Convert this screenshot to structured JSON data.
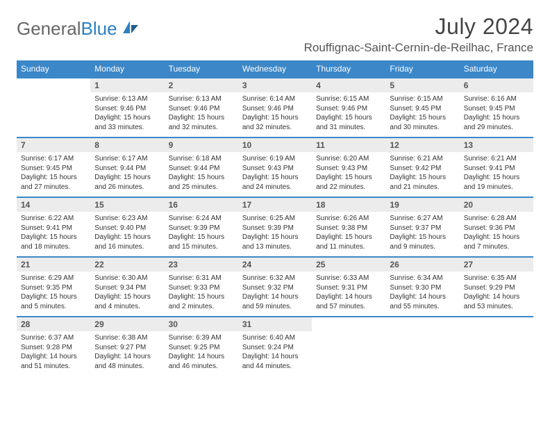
{
  "brand": {
    "part1": "General",
    "part2": "Blue"
  },
  "title": "July 2024",
  "location": "Rouffignac-Saint-Cernin-de-Reilhac, France",
  "colors": {
    "header_bg": "#3b87c8",
    "header_text": "#ffffff",
    "daynum_bg": "#ececec",
    "row_border": "#3b87c8",
    "body_text": "#333333",
    "brand_gray": "#666666",
    "brand_blue": "#2f7fbf"
  },
  "typography": {
    "title_fontsize": 32,
    "location_fontsize": 17,
    "dayheader_fontsize": 12,
    "daynum_fontsize": 12,
    "cell_fontsize": 10
  },
  "layout": {
    "start_weekday": 0,
    "first_day_column": 1,
    "days_in_month": 31,
    "rows": 5,
    "cols": 7
  },
  "day_headers": [
    "Sunday",
    "Monday",
    "Tuesday",
    "Wednesday",
    "Thursday",
    "Friday",
    "Saturday"
  ],
  "days": [
    {
      "n": 1,
      "sunrise": "6:13 AM",
      "sunset": "9:46 PM",
      "daylight": "15 hours and 33 minutes."
    },
    {
      "n": 2,
      "sunrise": "6:13 AM",
      "sunset": "9:46 PM",
      "daylight": "15 hours and 32 minutes."
    },
    {
      "n": 3,
      "sunrise": "6:14 AM",
      "sunset": "9:46 PM",
      "daylight": "15 hours and 32 minutes."
    },
    {
      "n": 4,
      "sunrise": "6:15 AM",
      "sunset": "9:46 PM",
      "daylight": "15 hours and 31 minutes."
    },
    {
      "n": 5,
      "sunrise": "6:15 AM",
      "sunset": "9:45 PM",
      "daylight": "15 hours and 30 minutes."
    },
    {
      "n": 6,
      "sunrise": "6:16 AM",
      "sunset": "9:45 PM",
      "daylight": "15 hours and 29 minutes."
    },
    {
      "n": 7,
      "sunrise": "6:17 AM",
      "sunset": "9:45 PM",
      "daylight": "15 hours and 27 minutes."
    },
    {
      "n": 8,
      "sunrise": "6:17 AM",
      "sunset": "9:44 PM",
      "daylight": "15 hours and 26 minutes."
    },
    {
      "n": 9,
      "sunrise": "6:18 AM",
      "sunset": "9:44 PM",
      "daylight": "15 hours and 25 minutes."
    },
    {
      "n": 10,
      "sunrise": "6:19 AM",
      "sunset": "9:43 PM",
      "daylight": "15 hours and 24 minutes."
    },
    {
      "n": 11,
      "sunrise": "6:20 AM",
      "sunset": "9:43 PM",
      "daylight": "15 hours and 22 minutes."
    },
    {
      "n": 12,
      "sunrise": "6:21 AM",
      "sunset": "9:42 PM",
      "daylight": "15 hours and 21 minutes."
    },
    {
      "n": 13,
      "sunrise": "6:21 AM",
      "sunset": "9:41 PM",
      "daylight": "15 hours and 19 minutes."
    },
    {
      "n": 14,
      "sunrise": "6:22 AM",
      "sunset": "9:41 PM",
      "daylight": "15 hours and 18 minutes."
    },
    {
      "n": 15,
      "sunrise": "6:23 AM",
      "sunset": "9:40 PM",
      "daylight": "15 hours and 16 minutes."
    },
    {
      "n": 16,
      "sunrise": "6:24 AM",
      "sunset": "9:39 PM",
      "daylight": "15 hours and 15 minutes."
    },
    {
      "n": 17,
      "sunrise": "6:25 AM",
      "sunset": "9:39 PM",
      "daylight": "15 hours and 13 minutes."
    },
    {
      "n": 18,
      "sunrise": "6:26 AM",
      "sunset": "9:38 PM",
      "daylight": "15 hours and 11 minutes."
    },
    {
      "n": 19,
      "sunrise": "6:27 AM",
      "sunset": "9:37 PM",
      "daylight": "15 hours and 9 minutes."
    },
    {
      "n": 20,
      "sunrise": "6:28 AM",
      "sunset": "9:36 PM",
      "daylight": "15 hours and 7 minutes."
    },
    {
      "n": 21,
      "sunrise": "6:29 AM",
      "sunset": "9:35 PM",
      "daylight": "15 hours and 5 minutes."
    },
    {
      "n": 22,
      "sunrise": "6:30 AM",
      "sunset": "9:34 PM",
      "daylight": "15 hours and 4 minutes."
    },
    {
      "n": 23,
      "sunrise": "6:31 AM",
      "sunset": "9:33 PM",
      "daylight": "15 hours and 2 minutes."
    },
    {
      "n": 24,
      "sunrise": "6:32 AM",
      "sunset": "9:32 PM",
      "daylight": "14 hours and 59 minutes."
    },
    {
      "n": 25,
      "sunrise": "6:33 AM",
      "sunset": "9:31 PM",
      "daylight": "14 hours and 57 minutes."
    },
    {
      "n": 26,
      "sunrise": "6:34 AM",
      "sunset": "9:30 PM",
      "daylight": "14 hours and 55 minutes."
    },
    {
      "n": 27,
      "sunrise": "6:35 AM",
      "sunset": "9:29 PM",
      "daylight": "14 hours and 53 minutes."
    },
    {
      "n": 28,
      "sunrise": "6:37 AM",
      "sunset": "9:28 PM",
      "daylight": "14 hours and 51 minutes."
    },
    {
      "n": 29,
      "sunrise": "6:38 AM",
      "sunset": "9:27 PM",
      "daylight": "14 hours and 48 minutes."
    },
    {
      "n": 30,
      "sunrise": "6:39 AM",
      "sunset": "9:25 PM",
      "daylight": "14 hours and 46 minutes."
    },
    {
      "n": 31,
      "sunrise": "6:40 AM",
      "sunset": "9:24 PM",
      "daylight": "14 hours and 44 minutes."
    }
  ],
  "labels": {
    "sunrise": "Sunrise:",
    "sunset": "Sunset:",
    "daylight": "Daylight:"
  }
}
